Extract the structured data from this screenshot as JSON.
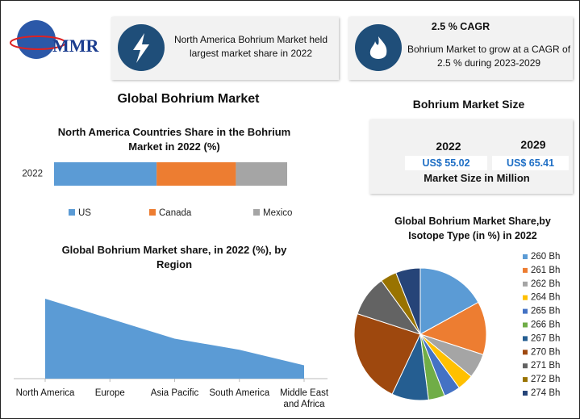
{
  "logo": "MMR",
  "highlight": "North America Bohrium Market held largest market share in 2022",
  "cagr": {
    "title": "2.5 % CAGR",
    "text": "Bohrium Market to grow at a CAGR of 2.5 % during 2023-2029"
  },
  "main_title": "Global Bohrium Market",
  "market_size": {
    "title": "Bohrium Market Size",
    "years": [
      "2022",
      "2029"
    ],
    "values": [
      "US$ 55.02",
      "US$ 65.41"
    ],
    "caption": "Market Size in Million"
  },
  "chart_data": [
    {
      "type": "bar",
      "orientation": "horizontal",
      "stacked": true,
      "title": "North America Countries Share in the Bohrium Market in 2022 (%)",
      "categories": [
        "2022"
      ],
      "series": [
        {
          "name": "US",
          "color": "#5b9bd5",
          "values": [
            44
          ]
        },
        {
          "name": "Canada",
          "color": "#ed7d31",
          "values": [
            34
          ]
        },
        {
          "name": "Mexico",
          "color": "#a5a5a5",
          "values": [
            22
          ]
        }
      ],
      "legend": "bottom"
    },
    {
      "type": "area",
      "title": "Global Bohrium Market share, in 2022 (%), by Region",
      "categories": [
        "North America",
        "Europe",
        "Asia Pacific",
        "South America",
        "Middle East and Africa"
      ],
      "values": [
        36,
        27,
        18,
        13,
        6
      ],
      "color": "#5b9bd5"
    },
    {
      "type": "pie",
      "title": "Global Bohrium Market Share,by Isotope Type (in %) in 2022",
      "categories": [
        "260 Bh",
        "261 Bh",
        "262 Bh",
        "264 Bh",
        "265 Bh",
        "266 Bh",
        "267 Bh",
        "270 Bh",
        "271 Bh",
        "272 Bh",
        "274 Bh"
      ],
      "values": [
        17,
        13,
        6,
        4,
        4,
        4,
        9,
        23,
        10,
        4,
        6
      ],
      "colors": [
        "#5b9bd5",
        "#ed7d31",
        "#a5a5a5",
        "#ffc000",
        "#4472c4",
        "#70ad47",
        "#255e91",
        "#9e480e",
        "#636363",
        "#997300",
        "#264478"
      ],
      "legend": "right"
    }
  ]
}
